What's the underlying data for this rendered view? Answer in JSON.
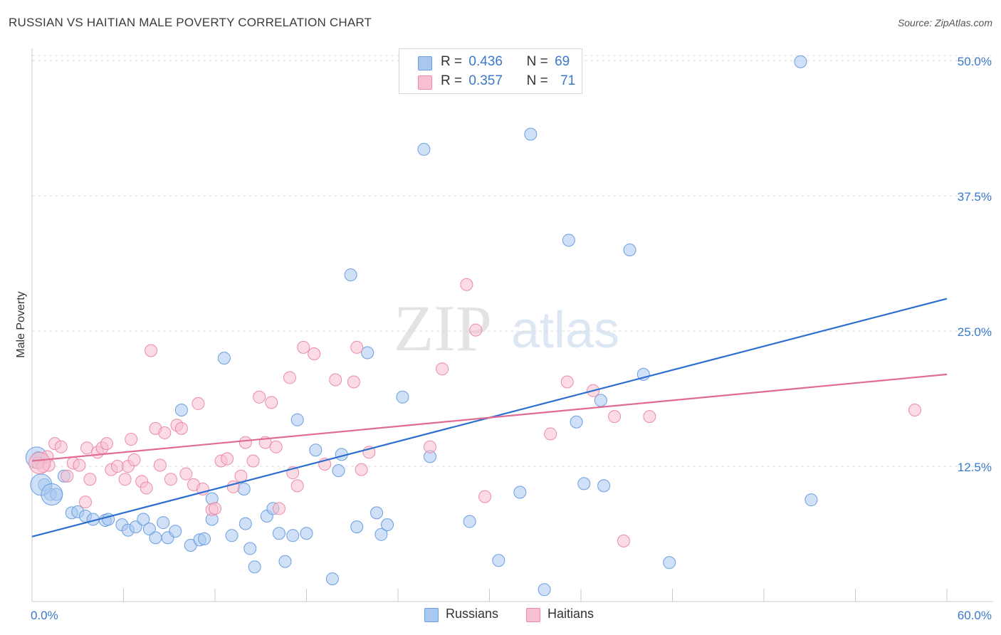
{
  "title": "RUSSIAN VS HAITIAN MALE POVERTY CORRELATION CHART",
  "source": "Source: ZipAtlas.com",
  "watermark": {
    "zip": "ZIP",
    "atlas": "atlas"
  },
  "legend": {
    "r_label": "R =",
    "n_label": "N =",
    "rows": [
      {
        "r": "0.436",
        "n": "69",
        "color": "#a9c8f0"
      },
      {
        "r": "0.357",
        "n": "71",
        "color": "#f7bfd0"
      }
    ]
  },
  "bottom_legend": [
    "Russians",
    "Haitians"
  ],
  "chart_data": {
    "type": "scatter",
    "title": "RUSSIAN VS HAITIAN MALE POVERTY CORRELATION CHART",
    "ylabel": "Male Poverty",
    "xlabel": "",
    "xlim": [
      0,
      60
    ],
    "ylim": [
      0,
      51
    ],
    "x_tick_labels": [
      {
        "value": 0,
        "label": "0.0%"
      },
      {
        "value": 60,
        "label": "60.0%"
      }
    ],
    "y_tick_labels": [
      {
        "value": 12.5,
        "label": "12.5%"
      },
      {
        "value": 25,
        "label": "25.0%"
      },
      {
        "value": 37.5,
        "label": "37.5%"
      },
      {
        "value": 50,
        "label": "50.0%"
      }
    ],
    "series": [
      {
        "name": "Russians",
        "color": "#a9c8f0",
        "stroke": "#6a9ee0",
        "trend": {
          "x": [
            0,
            60
          ],
          "y": [
            6,
            28
          ],
          "color": "#2c6fcf"
        },
        "points": [
          [
            0.4,
            13.3
          ],
          [
            0.8,
            10.8
          ],
          [
            1.2,
            9.9
          ],
          [
            1.6,
            9.9
          ],
          [
            2.1,
            11.6
          ],
          [
            2.6,
            8.2
          ],
          [
            3.0,
            8.3
          ],
          [
            3.5,
            7.9
          ],
          [
            4.0,
            7.6
          ],
          [
            4.8,
            7.5
          ],
          [
            5.0,
            7.6
          ],
          [
            5.9,
            7.1
          ],
          [
            6.3,
            6.6
          ],
          [
            6.8,
            6.9
          ],
          [
            7.3,
            7.6
          ],
          [
            7.7,
            6.7
          ],
          [
            8.1,
            5.9
          ],
          [
            8.6,
            7.3
          ],
          [
            8.9,
            5.9
          ],
          [
            9.4,
            6.5
          ],
          [
            9.8,
            17.7
          ],
          [
            10.4,
            5.2
          ],
          [
            11.0,
            5.7
          ],
          [
            11.3,
            5.8
          ],
          [
            11.8,
            7.6
          ],
          [
            11.8,
            9.5
          ],
          [
            12.6,
            22.5
          ],
          [
            13.1,
            6.1
          ],
          [
            13.9,
            10.4
          ],
          [
            14.0,
            7.2
          ],
          [
            14.3,
            4.9
          ],
          [
            14.6,
            3.2
          ],
          [
            15.4,
            7.9
          ],
          [
            15.8,
            8.6
          ],
          [
            16.2,
            6.3
          ],
          [
            16.6,
            3.7
          ],
          [
            17.1,
            6.1
          ],
          [
            17.4,
            16.8
          ],
          [
            18.0,
            6.3
          ],
          [
            18.6,
            14.0
          ],
          [
            19.7,
            2.1
          ],
          [
            20.1,
            12.1
          ],
          [
            20.3,
            13.6
          ],
          [
            20.9,
            30.2
          ],
          [
            21.3,
            6.9
          ],
          [
            22.0,
            23.0
          ],
          [
            22.6,
            8.2
          ],
          [
            22.9,
            6.2
          ],
          [
            23.3,
            7.1
          ],
          [
            24.3,
            18.9
          ],
          [
            25.7,
            41.8
          ],
          [
            26.1,
            13.4
          ],
          [
            26.4,
            50.3
          ],
          [
            28.7,
            7.4
          ],
          [
            30.6,
            3.8
          ],
          [
            32.0,
            10.1
          ],
          [
            32.7,
            43.2
          ],
          [
            33.6,
            1.1
          ],
          [
            35.2,
            33.4
          ],
          [
            35.7,
            16.6
          ],
          [
            36.2,
            10.9
          ],
          [
            37.3,
            18.6
          ],
          [
            37.5,
            10.7
          ],
          [
            39.2,
            32.5
          ],
          [
            40.1,
            21.0
          ],
          [
            41.8,
            3.6
          ],
          [
            50.4,
            49.9
          ],
          [
            51.1,
            9.4
          ]
        ],
        "big_points": [
          [
            0.3,
            13.3
          ],
          [
            0.6,
            10.8
          ],
          [
            1.3,
            9.9
          ]
        ]
      },
      {
        "name": "Haitians",
        "color": "#f7bfd0",
        "stroke": "#ec8aa8",
        "trend": {
          "x": [
            0,
            60
          ],
          "y": [
            13,
            21
          ],
          "color": "#e06b95"
        },
        "points": [
          [
            0.4,
            12.8
          ],
          [
            0.7,
            12.5
          ],
          [
            1.0,
            13.4
          ],
          [
            1.1,
            12.6
          ],
          [
            1.5,
            14.6
          ],
          [
            1.9,
            14.3
          ],
          [
            2.3,
            11.6
          ],
          [
            2.7,
            12.8
          ],
          [
            3.1,
            12.6
          ],
          [
            3.5,
            9.2
          ],
          [
            3.6,
            14.2
          ],
          [
            3.8,
            11.3
          ],
          [
            4.3,
            13.8
          ],
          [
            4.6,
            14.2
          ],
          [
            4.9,
            14.6
          ],
          [
            5.2,
            12.2
          ],
          [
            5.6,
            12.5
          ],
          [
            6.1,
            11.3
          ],
          [
            6.3,
            12.5
          ],
          [
            6.5,
            15.0
          ],
          [
            6.7,
            13.1
          ],
          [
            7.2,
            11.1
          ],
          [
            7.5,
            10.5
          ],
          [
            7.8,
            23.2
          ],
          [
            8.1,
            16.0
          ],
          [
            8.4,
            12.6
          ],
          [
            8.7,
            15.6
          ],
          [
            9.1,
            11.3
          ],
          [
            9.5,
            16.3
          ],
          [
            9.8,
            16.0
          ],
          [
            10.1,
            11.8
          ],
          [
            10.6,
            10.8
          ],
          [
            10.9,
            18.3
          ],
          [
            11.2,
            10.4
          ],
          [
            11.8,
            8.5
          ],
          [
            12.0,
            8.6
          ],
          [
            12.4,
            13.0
          ],
          [
            12.8,
            13.2
          ],
          [
            13.2,
            10.6
          ],
          [
            13.7,
            11.6
          ],
          [
            14.0,
            14.7
          ],
          [
            14.5,
            13.0
          ],
          [
            14.9,
            18.9
          ],
          [
            15.3,
            14.7
          ],
          [
            15.7,
            18.4
          ],
          [
            16.0,
            14.3
          ],
          [
            16.2,
            8.6
          ],
          [
            16.9,
            20.7
          ],
          [
            17.1,
            11.9
          ],
          [
            17.4,
            10.7
          ],
          [
            17.8,
            23.5
          ],
          [
            18.5,
            22.9
          ],
          [
            19.2,
            12.7
          ],
          [
            19.9,
            20.5
          ],
          [
            21.1,
            20.3
          ],
          [
            21.3,
            23.5
          ],
          [
            21.6,
            12.2
          ],
          [
            22.1,
            13.8
          ],
          [
            26.1,
            14.3
          ],
          [
            26.9,
            21.5
          ],
          [
            28.5,
            29.3
          ],
          [
            29.1,
            25.1
          ],
          [
            29.7,
            9.7
          ],
          [
            34.0,
            15.5
          ],
          [
            35.1,
            20.3
          ],
          [
            36.8,
            19.5
          ],
          [
            38.2,
            17.1
          ],
          [
            38.8,
            5.6
          ],
          [
            40.5,
            17.1
          ],
          [
            57.9,
            17.7
          ]
        ],
        "big_points": [
          [
            0.5,
            12.8
          ]
        ]
      }
    ]
  }
}
